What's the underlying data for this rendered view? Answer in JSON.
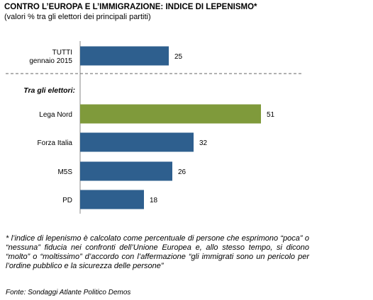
{
  "header": {
    "title": "CONTRO L’EUROPA E L’IMMIGRAZIONE:  INDICE DI LEPENISMO*",
    "subtitle": "(valori % tra gli elettori dei principali partiti)"
  },
  "chart_data": {
    "type": "bar",
    "orientation": "horizontal",
    "categories": [
      [
        "TUTTI",
        "gennaio 2015"
      ],
      [
        "Lega Nord"
      ],
      [
        "Forza Italia"
      ],
      [
        "M5S"
      ],
      [
        "PD"
      ]
    ],
    "values": [
      25,
      51,
      32,
      26,
      18
    ],
    "value_labels": [
      "25",
      "51",
      "32",
      "26",
      "18"
    ],
    "group_label": "Tra gli elettori:",
    "colors": [
      "#2e5f8e",
      "#7f9a3b",
      "#2e5f8e",
      "#2e5f8e",
      "#2e5f8e"
    ],
    "xlim": [
      0,
      60
    ],
    "grid": false
  },
  "footnote": "* l’indice di lepenismo è calcolato come percentuale di persone che esprimono “poca” o “nessuna” fiducia nei confronti dell’Unione Europea e, allo stesso tempo, si dicono “molto” o “moltissimo” d’accordo con l’affermazione “gli immigrati sono un pericolo per l’ordine pubblico e la sicurezza delle persone”",
  "source": "Fonte: Sondaggi Atlante Politico Demos"
}
